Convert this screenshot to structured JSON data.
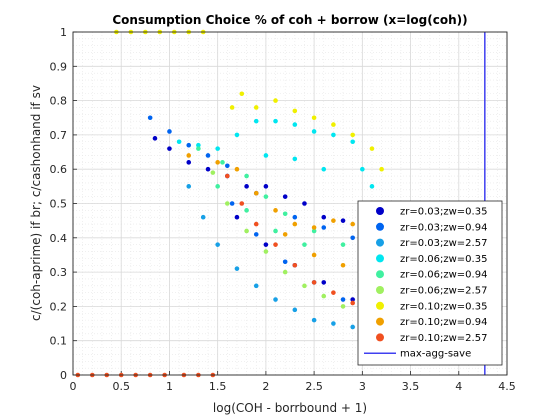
{
  "chart_data": {
    "type": "scatter",
    "title": "Consumption Choice % of coh + borrow (x=log(coh))",
    "xlabel": "log(COH - borrbound + 1)",
    "ylabel": "c/(coh-aprime) if br; c/cashonhand if sv",
    "xlim": [
      0,
      4.5
    ],
    "ylim": [
      0,
      1
    ],
    "xticks": [
      "0",
      "0.5",
      "1",
      "1.5",
      "2",
      "2.5",
      "3",
      "3.5",
      "4",
      "4.5"
    ],
    "yticks": [
      "0",
      "0.1",
      "0.2",
      "0.3",
      "0.4",
      "0.5",
      "0.6",
      "0.7",
      "0.8",
      "0.9",
      "1"
    ],
    "grid": true,
    "minor_grid": true,
    "legend_position": "bottom-right",
    "vline": {
      "name": "max-agg-save",
      "x": 4.27,
      "color": "#4040f0"
    },
    "series": [
      {
        "name": "zr=0.03;zw=0.35",
        "color": "#0000c8",
        "points": [
          [
            0.85,
            0.69
          ],
          [
            1.0,
            0.66
          ],
          [
            1.2,
            0.62
          ],
          [
            1.4,
            0.6
          ],
          [
            1.6,
            0.58
          ],
          [
            1.8,
            0.55
          ],
          [
            1.9,
            0.53
          ],
          [
            2.0,
            0.55
          ],
          [
            2.2,
            0.52
          ],
          [
            2.4,
            0.5
          ],
          [
            2.6,
            0.46
          ],
          [
            2.8,
            0.45
          ],
          [
            3.0,
            0.42
          ],
          [
            1.7,
            0.46
          ],
          [
            2.0,
            0.38
          ],
          [
            2.3,
            0.32
          ],
          [
            2.6,
            0.27
          ],
          [
            2.9,
            0.22
          ],
          [
            3.1,
            0.19
          ],
          [
            3.3,
            0.16
          ]
        ]
      },
      {
        "name": "zr=0.03;zw=0.94",
        "color": "#0064f0",
        "points": [
          [
            0.8,
            0.75
          ],
          [
            1.0,
            0.71
          ],
          [
            1.2,
            0.67
          ],
          [
            1.4,
            0.64
          ],
          [
            1.6,
            0.61
          ],
          [
            1.65,
            0.5
          ],
          [
            1.9,
            0.41
          ],
          [
            2.2,
            0.33
          ],
          [
            2.5,
            0.27
          ],
          [
            2.8,
            0.22
          ],
          [
            3.0,
            0.19
          ],
          [
            3.3,
            0.15
          ],
          [
            2.3,
            0.46
          ],
          [
            2.6,
            0.43
          ],
          [
            2.9,
            0.4
          ]
        ]
      },
      {
        "name": "zr=0.03;zw=2.57",
        "color": "#17a0e6",
        "points": [
          [
            1.2,
            0.55
          ],
          [
            1.35,
            0.46
          ],
          [
            1.5,
            0.38
          ],
          [
            1.7,
            0.31
          ],
          [
            1.9,
            0.26
          ],
          [
            2.1,
            0.22
          ],
          [
            2.3,
            0.19
          ],
          [
            2.5,
            0.16
          ],
          [
            2.7,
            0.15
          ],
          [
            2.9,
            0.14
          ],
          [
            3.1,
            0.13
          ],
          [
            3.3,
            0.12
          ]
        ]
      },
      {
        "name": "zr=0.06;zw=0.35",
        "color": "#00e6f0",
        "points": [
          [
            1.1,
            0.68
          ],
          [
            1.3,
            0.67
          ],
          [
            1.5,
            0.66
          ],
          [
            1.7,
            0.7
          ],
          [
            1.9,
            0.74
          ],
          [
            2.1,
            0.74
          ],
          [
            2.3,
            0.73
          ],
          [
            2.5,
            0.71
          ],
          [
            2.7,
            0.7
          ],
          [
            2.9,
            0.68
          ],
          [
            3.0,
            0.6
          ],
          [
            3.1,
            0.55
          ],
          [
            3.2,
            0.5
          ],
          [
            2.0,
            0.64
          ],
          [
            2.3,
            0.63
          ],
          [
            2.6,
            0.6
          ]
        ]
      },
      {
        "name": "zr=0.06;zw=0.94",
        "color": "#40f0a0",
        "points": [
          [
            1.3,
            0.66
          ],
          [
            1.55,
            0.62
          ],
          [
            1.8,
            0.58
          ],
          [
            2.0,
            0.52
          ],
          [
            2.2,
            0.47
          ],
          [
            2.5,
            0.42
          ],
          [
            2.8,
            0.38
          ],
          [
            3.1,
            0.33
          ],
          [
            1.5,
            0.55
          ],
          [
            1.8,
            0.48
          ],
          [
            2.1,
            0.42
          ],
          [
            2.4,
            0.38
          ]
        ]
      },
      {
        "name": "zr=0.06;zw=2.57",
        "color": "#a0f060",
        "points": [
          [
            1.45,
            0.59
          ],
          [
            1.6,
            0.5
          ],
          [
            1.8,
            0.42
          ],
          [
            2.0,
            0.36
          ],
          [
            2.2,
            0.3
          ],
          [
            2.4,
            0.26
          ],
          [
            2.6,
            0.23
          ],
          [
            2.8,
            0.2
          ],
          [
            3.0,
            0.18
          ],
          [
            3.3,
            0.16
          ]
        ]
      },
      {
        "name": "zr=0.10;zw=0.35",
        "color": "#f0f000",
        "points": [
          [
            0.45,
            1.0
          ],
          [
            0.6,
            1.0
          ],
          [
            0.75,
            1.0
          ],
          [
            0.9,
            1.0
          ],
          [
            1.05,
            1.0
          ],
          [
            1.2,
            1.0
          ],
          [
            1.35,
            1.0
          ],
          [
            1.65,
            0.78
          ],
          [
            1.75,
            0.82
          ],
          [
            1.9,
            0.78
          ],
          [
            2.1,
            0.8
          ],
          [
            2.3,
            0.77
          ],
          [
            2.5,
            0.75
          ],
          [
            2.7,
            0.73
          ],
          [
            2.9,
            0.7
          ],
          [
            3.1,
            0.66
          ],
          [
            3.2,
            0.6
          ]
        ]
      },
      {
        "name": "zr=0.10;zw=0.94",
        "color": "#f0a000",
        "points": [
          [
            1.2,
            0.64
          ],
          [
            1.5,
            0.62
          ],
          [
            1.7,
            0.6
          ],
          [
            1.9,
            0.53
          ],
          [
            2.1,
            0.48
          ],
          [
            2.3,
            0.44
          ],
          [
            2.5,
            0.43
          ],
          [
            2.7,
            0.45
          ],
          [
            2.9,
            0.44
          ],
          [
            3.1,
            0.4
          ],
          [
            3.2,
            0.36
          ],
          [
            2.2,
            0.41
          ],
          [
            2.5,
            0.35
          ],
          [
            2.8,
            0.32
          ],
          [
            3.1,
            0.29
          ]
        ]
      },
      {
        "name": "zr=0.10;zw=2.57",
        "color": "#f05020",
        "points": [
          [
            1.6,
            0.58
          ],
          [
            1.75,
            0.5
          ],
          [
            1.9,
            0.44
          ],
          [
            2.1,
            0.38
          ],
          [
            2.3,
            0.32
          ],
          [
            2.5,
            0.27
          ],
          [
            2.7,
            0.24
          ],
          [
            2.9,
            0.21
          ],
          [
            3.1,
            0.19
          ],
          [
            3.3,
            0.17
          ],
          [
            0.05,
            0.0
          ],
          [
            0.2,
            0.0
          ],
          [
            0.35,
            0.0
          ],
          [
            0.5,
            0.0
          ],
          [
            0.65,
            0.0
          ],
          [
            0.8,
            0.0
          ],
          [
            0.95,
            0.0
          ],
          [
            1.15,
            0.0
          ],
          [
            1.3,
            0.0
          ],
          [
            1.45,
            0.0
          ]
        ]
      }
    ]
  }
}
